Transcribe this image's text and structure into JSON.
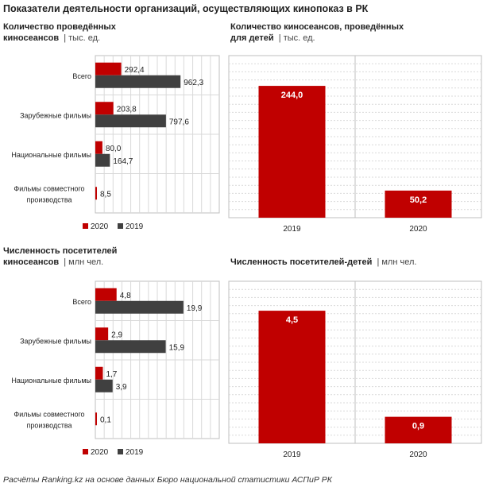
{
  "title": "Показатели деятельности организаций, осуществляющих кинопоказ в РК",
  "source": "Расчёты Ranking.kz на основе данных Бюро национальной  статистики АСПиР РК",
  "colors": {
    "s2020": "#c00000",
    "s2019": "#404040",
    "grid": "#d9d9d9",
    "frame": "#bfbfbf"
  },
  "panels": {
    "sessions": {
      "title_line1": "Количество  проведённых",
      "title_line2": "киносеансов",
      "unit": "| тыс. ед."
    },
    "kids_sessions": {
      "title_line1": "Количество  киносеансов,  проведённых",
      "title_line2": "для детей",
      "unit": "| тыс. ед."
    },
    "visitors": {
      "title_line1": "Численность  посетителей",
      "title_line2": "киносеансов",
      "unit": "| млн чел."
    },
    "kids_visitors": {
      "title_line1": "Численность  посетителей-детей",
      "title_line2": "",
      "unit": "| млн чел."
    }
  },
  "chart_data": [
    {
      "type": "bar",
      "orientation": "horizontal",
      "categories": [
        "Всего",
        "Зарубежные фильмы",
        "Национальные фильмы",
        "Фильмы совместного производства"
      ],
      "series": [
        {
          "name": "2020",
          "values": [
            292.4,
            203.8,
            80.0,
            8.5
          ],
          "labels": [
            "292,4",
            "203,8",
            "80,0",
            "8,5"
          ]
        },
        {
          "name": "2019",
          "values": [
            962.3,
            797.6,
            164.7,
            null
          ],
          "labels": [
            "962,3",
            "797,6",
            "164,7",
            ""
          ]
        }
      ],
      "xlim": [
        0,
        1400
      ]
    },
    {
      "type": "bar",
      "categories": [
        "2019",
        "2020"
      ],
      "values": [
        244.0,
        50.2
      ],
      "labels": [
        "244,0",
        "50,2"
      ],
      "ylim": [
        0,
        300
      ]
    },
    {
      "type": "bar",
      "orientation": "horizontal",
      "categories": [
        "Всего",
        "Зарубежные фильмы",
        "Национальные фильмы",
        "Фильмы совместного производства"
      ],
      "series": [
        {
          "name": "2020",
          "values": [
            4.8,
            2.9,
            1.7,
            0.1
          ],
          "labels": [
            "4,8",
            "2,9",
            "1,7",
            "0,1"
          ]
        },
        {
          "name": "2019",
          "values": [
            19.9,
            15.9,
            3.9,
            null
          ],
          "labels": [
            "19,9",
            "15,9",
            "3,9",
            ""
          ]
        }
      ],
      "xlim": [
        0,
        28
      ]
    },
    {
      "type": "bar",
      "categories": [
        "2019",
        "2020"
      ],
      "values": [
        4.5,
        0.9
      ],
      "labels": [
        "4,5",
        "0,9"
      ],
      "ylim": [
        0,
        5.5
      ]
    }
  ]
}
